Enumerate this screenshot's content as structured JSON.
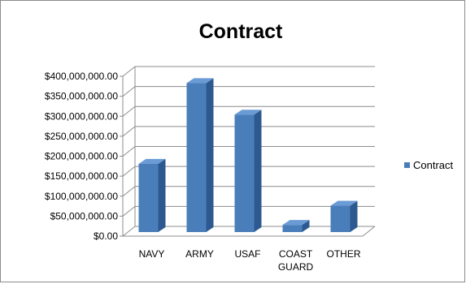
{
  "chart_data": {
    "type": "bar",
    "title": "Contract",
    "categories": [
      "NAVY",
      "ARMY",
      "USAF",
      "COAST GUARD",
      "OTHER"
    ],
    "category_lines": [
      [
        "NAVY"
      ],
      [
        "ARMY"
      ],
      [
        "USAF"
      ],
      [
        "COAST",
        "GUARD"
      ],
      [
        "OTHER"
      ]
    ],
    "series": [
      {
        "name": "Contract",
        "values": [
          175000000,
          377000000,
          298000000,
          22000000,
          70000000
        ]
      }
    ],
    "ylim": [
      0,
      400000000
    ],
    "yticks": [
      0,
      50000000,
      100000000,
      150000000,
      200000000,
      250000000,
      300000000,
      350000000,
      400000000
    ],
    "ytick_labels": [
      "$0.00",
      "$50,000,000.00",
      "$100,000,000.00",
      "$150,000,000.00",
      "$200,000,000.00",
      "$250,000,000.00",
      "$300,000,000.00",
      "$350,000,000.00",
      "$400,000,000.00"
    ],
    "grid": true,
    "legend_position": "right",
    "style": "3d-column",
    "colors": {
      "bar_front": "#4a7ebb",
      "bar_side": "#2c5a8f",
      "bar_top": "#6a9bd4",
      "grid": "#8c8c8c"
    }
  }
}
